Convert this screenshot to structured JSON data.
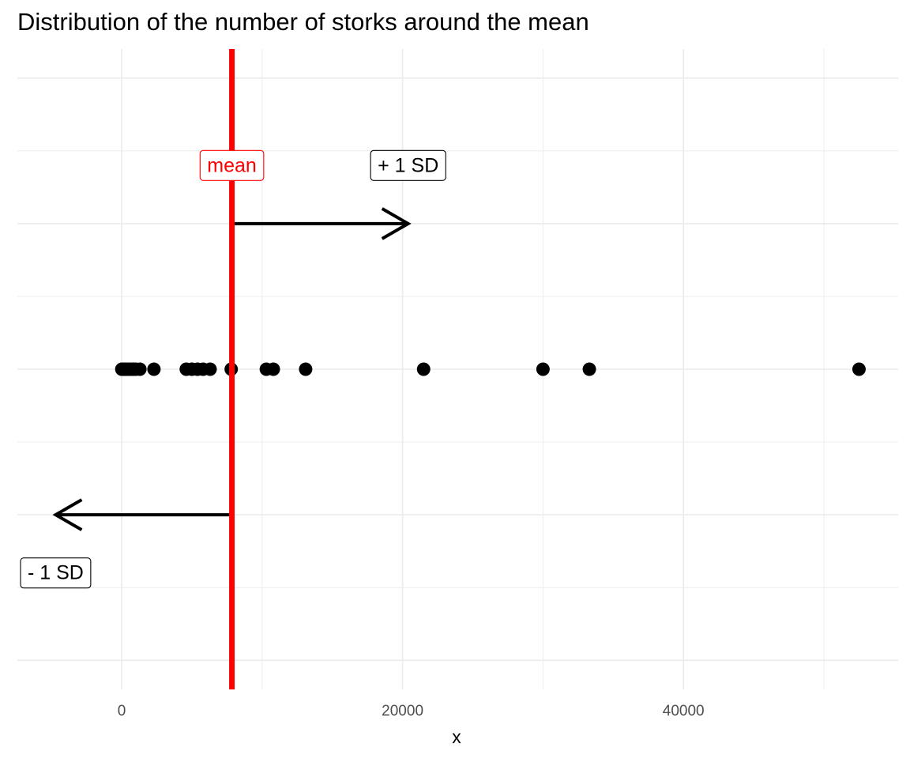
{
  "chart_data": {
    "type": "scatter",
    "title": "Distribution of the number of storks around the mean",
    "xlabel": "x",
    "ylabel": "",
    "xlim": [
      -7500,
      55500
    ],
    "ylim": [
      -2.2,
      2.2
    ],
    "x_ticks": [
      0,
      20000,
      40000
    ],
    "x_tick_labels": [
      "0",
      "20000",
      "40000"
    ],
    "grid": true,
    "points": {
      "y": 0,
      "x": [
        10,
        100,
        150,
        250,
        400,
        600,
        800,
        1000,
        1300,
        2300,
        4600,
        5000,
        5400,
        5800,
        6300,
        7800,
        10300,
        10800,
        13100,
        21500,
        30000,
        33300,
        52500
      ]
    },
    "mean": 7850,
    "sd": 12550,
    "annotations": {
      "mean_label": "mean",
      "plus_sd_label": "+ 1 SD",
      "minus_sd_label": "- 1 SD"
    },
    "colors": {
      "mean_line": "#ff0000",
      "points": "#000000",
      "grid": "#ebebeb",
      "arrows": "#000000"
    }
  }
}
